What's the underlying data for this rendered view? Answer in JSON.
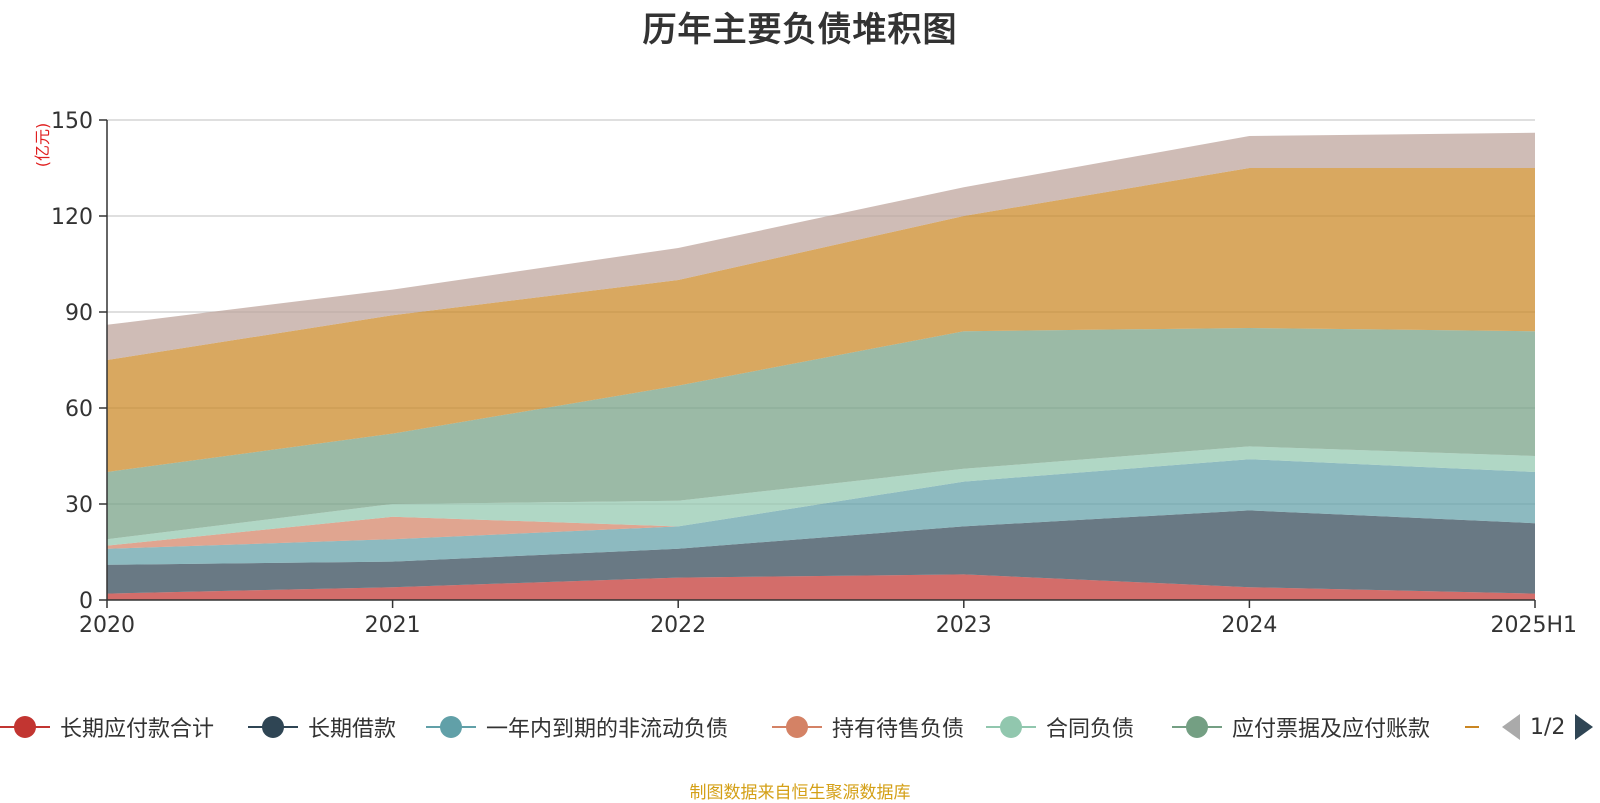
{
  "title": "历年主要负债堆积图",
  "source_note": "制图数据来自恒生聚源数据库",
  "legend_page": "1/2",
  "chart_data": {
    "type": "area",
    "stacked": true,
    "unit_label": "(亿元)",
    "categories": [
      "2020",
      "2021",
      "2022",
      "2023",
      "2024",
      "2025H1"
    ],
    "ylim": [
      0,
      150
    ],
    "yticks": [
      0,
      30,
      60,
      90,
      120,
      150
    ],
    "grid": true,
    "legend_position": "bottom",
    "series": [
      {
        "name": "长期应付款合计",
        "color": "#c23531",
        "values": [
          2,
          4,
          7,
          8,
          4,
          2
        ]
      },
      {
        "name": "长期借款",
        "color": "#2f4554",
        "values": [
          9,
          8,
          9,
          15,
          24,
          22
        ]
      },
      {
        "name": "一年内到期的非流动负债",
        "color": "#61a0a8",
        "values": [
          5,
          7,
          7,
          14,
          16,
          16
        ]
      },
      {
        "name": "持有待售负债",
        "color": "#d48265",
        "values": [
          1,
          7,
          0,
          0,
          0,
          0
        ]
      },
      {
        "name": "合同负债",
        "color": "#91c7ae",
        "values": [
          2,
          4,
          8,
          4,
          4,
          5
        ]
      },
      {
        "name": "应付票据及应付账款",
        "color": "#749f83",
        "values": [
          21,
          22,
          36,
          43,
          37,
          39
        ]
      },
      {
        "name": "",
        "color": "#ca8622",
        "values": [
          35,
          37,
          33,
          36,
          50,
          51
        ]
      },
      {
        "name": "",
        "color": "#bda29a",
        "values": [
          11,
          8,
          10,
          9,
          10,
          11
        ]
      }
    ]
  }
}
